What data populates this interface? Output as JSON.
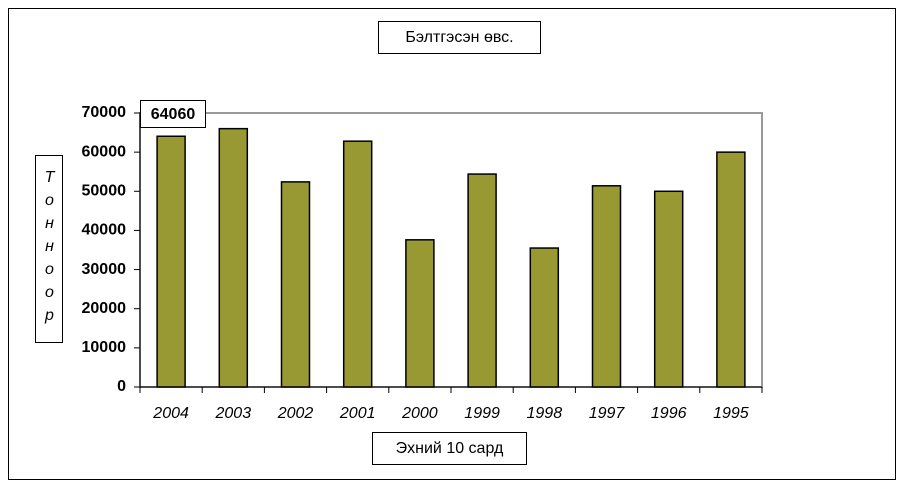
{
  "chart_data": {
    "type": "bar",
    "title": "Бэлтгэсэн өвс.",
    "x_label": "Эхний 10 сард",
    "y_label": "Тонноор",
    "annotation": "64060",
    "categories": [
      "2004",
      "2003",
      "2002",
      "2001",
      "2000",
      "1999",
      "1998",
      "1997",
      "1996",
      "1995"
    ],
    "values": [
      64060,
      66000,
      52400,
      62800,
      37600,
      54400,
      35500,
      51400,
      50000,
      60000
    ],
    "color": "#999933",
    "ylim": [
      0,
      70000
    ],
    "yticks": [
      0,
      10000,
      20000,
      30000,
      40000,
      50000,
      60000,
      70000
    ],
    "grid": false
  }
}
